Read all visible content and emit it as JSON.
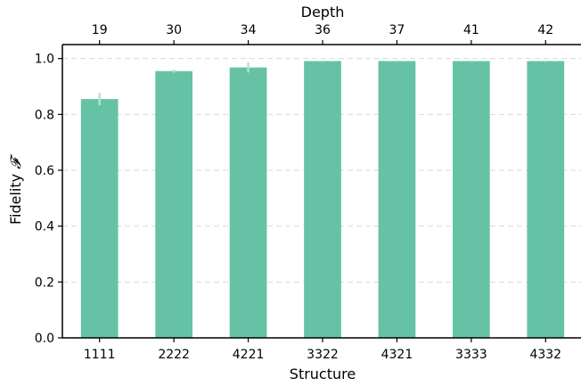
{
  "chart_data": {
    "type": "bar",
    "categories": [
      "1111",
      "2222",
      "4221",
      "3322",
      "4321",
      "3333",
      "4332"
    ],
    "values": [
      0.855,
      0.955,
      0.968,
      0.991,
      0.991,
      0.991,
      0.991
    ],
    "errors": [
      0.022,
      0.006,
      0.018,
      0.003,
      0.003,
      0.003,
      0.003
    ],
    "top_axis": {
      "label": "Depth",
      "tick_labels": [
        "19",
        "30",
        "34",
        "36",
        "37",
        "41",
        "42"
      ]
    },
    "xlabel": "Structure",
    "ylabel": "Fidelity",
    "ylabel_symbol": "𝓕",
    "ylim": [
      0.0,
      1.05
    ],
    "yticks": [
      0.0,
      0.2,
      0.4,
      0.6,
      0.8,
      1.0
    ],
    "ytick_labels": [
      "0.0",
      "0.2",
      "0.4",
      "0.6",
      "0.8",
      "1.0"
    ],
    "grid": "horizontal-dashed",
    "colors": {
      "bar": "#66c2a5",
      "error_bar": "#b3e2d3"
    }
  }
}
